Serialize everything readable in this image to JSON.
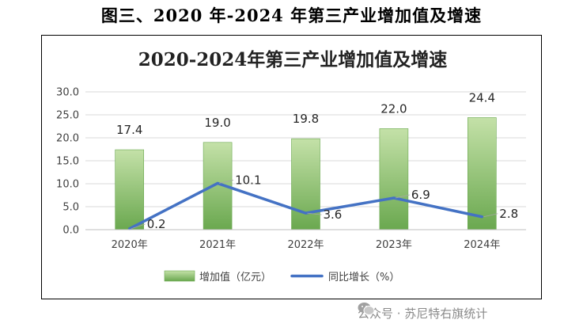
{
  "figure_caption": "图三、2020 年-2024 年第三产业增加值及增速",
  "watermark": {
    "icon": "wechat-icon",
    "text": "公众号 · 苏尼特右旗统计"
  },
  "colors": {
    "bar_top": "#c4e1a8",
    "bar_bottom": "#6aa84f",
    "line": "#4472c4",
    "grid": "#d9d9d9",
    "axis": "#bfbfbf"
  },
  "chart_data": {
    "type": "bar",
    "title": "2020-2024年第三产业增加值及增速",
    "categories": [
      "2020年",
      "2021年",
      "2022年",
      "2023年",
      "2024年"
    ],
    "ylim": [
      0,
      30
    ],
    "yticks": [
      "0.0",
      "5.0",
      "10.0",
      "15.0",
      "20.0",
      "25.0",
      "30.0"
    ],
    "series": [
      {
        "name": "增加值（亿元）",
        "type": "bar",
        "values": [
          17.4,
          19.0,
          19.8,
          22.0,
          24.4
        ],
        "labels": [
          "17.4",
          "19.0",
          "19.8",
          "22.0",
          "24.4"
        ]
      },
      {
        "name": "同比增长（%）",
        "type": "line",
        "values": [
          0.2,
          10.1,
          3.6,
          6.9,
          2.8
        ],
        "labels": [
          "0.2",
          "10.1",
          "3.6",
          "6.9",
          "2.8"
        ]
      }
    ],
    "legend": [
      "增加值（亿元）",
      "同比增长（%）"
    ]
  }
}
